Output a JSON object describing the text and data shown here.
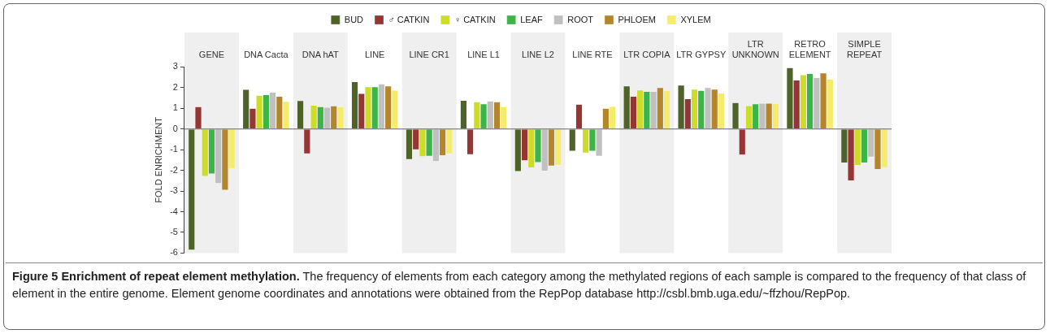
{
  "chart_data": {
    "type": "bar",
    "title": "Figure 5 Enrichment of repeat element methylation.",
    "annotations": [
      "The frequency of elements from each category among the methylated regions of each sample is compared to the frequency of that class of element in the entire genome. Element genome coordinates and annotations were obtained from the RepPop database http://csbl.bmb.uga.edu/~ffzhou/RepPop."
    ],
    "ylabel": "FOLD ENRICHMENT",
    "categories": [
      "GENE",
      "DNA Cacta",
      "DNA hAT",
      "LINE",
      "LINE CR1",
      "LINE L1",
      "LINE L2",
      "LINE RTE",
      "LTR COPIA",
      "LTR GYPSY",
      "LTR\nUNKNOWN",
      "RETRO\nELEMENT",
      "SIMPLE\nREPEAT"
    ],
    "series": [
      {
        "name": "BUD",
        "color": "#4f6228",
        "values": [
          -5.86,
          1.92,
          1.37,
          2.29,
          -1.47,
          1.38,
          -2.05,
          -1.07,
          2.08,
          2.12,
          1.28,
          2.97,
          -1.64
        ]
      },
      {
        "name": "♂ CATKIN",
        "color": "#963634",
        "values": [
          1.08,
          1.0,
          -1.2,
          1.72,
          -1.0,
          -1.24,
          -1.53,
          1.2,
          1.58,
          1.46,
          -1.26,
          2.37,
          -2.51
        ]
      },
      {
        "name": "♀ CATKIN",
        "color": "#cddc29",
        "values": [
          -2.29,
          1.63,
          1.15,
          2.04,
          -1.34,
          1.32,
          -1.88,
          -1.16,
          1.89,
          1.93,
          1.13,
          2.62,
          -1.76
        ]
      },
      {
        "name": "LEAF",
        "color": "#3cb44a",
        "values": [
          -2.17,
          1.66,
          1.08,
          2.04,
          -1.32,
          1.22,
          -1.62,
          -1.07,
          1.82,
          1.87,
          1.22,
          2.68,
          -1.64
        ]
      },
      {
        "name": "ROOT",
        "color": "#c0c0c0",
        "values": [
          -2.63,
          1.78,
          1.05,
          2.18,
          -1.57,
          1.36,
          -2.03,
          -1.32,
          1.82,
          2.0,
          1.25,
          2.49,
          -1.36
        ]
      },
      {
        "name": "PHLOEM",
        "color": "#b3862c",
        "values": [
          -2.96,
          1.58,
          1.12,
          2.08,
          -1.29,
          1.32,
          -1.79,
          1.0,
          2.0,
          1.93,
          1.25,
          2.71,
          -1.96
        ]
      },
      {
        "name": "XYLEM",
        "color": "#f5ec6c",
        "values": [
          -1.93,
          1.34,
          1.08,
          1.88,
          -1.2,
          1.07,
          -1.76,
          1.09,
          1.87,
          1.74,
          1.24,
          2.42,
          -1.87
        ]
      }
    ],
    "bands": [
      {
        "axis": "x",
        "from": "GENE",
        "to": "GENE",
        "color": "#efefef"
      },
      {
        "axis": "x",
        "from": "DNA hAT",
        "to": "DNA hAT",
        "color": "#efefef"
      },
      {
        "axis": "x",
        "from": "LINE CR1",
        "to": "LINE CR1",
        "color": "#efefef"
      },
      {
        "axis": "x",
        "from": "LINE L2",
        "to": "LINE L2",
        "color": "#efefef"
      },
      {
        "axis": "x",
        "from": "LTR COPIA",
        "to": "LTR COPIA",
        "color": "#efefef"
      },
      {
        "axis": "x",
        "from": "LTR\nUNKNOWN",
        "to": "LTR\nUNKNOWN",
        "color": "#efefef"
      },
      {
        "axis": "x",
        "from": "SIMPLE\nREPEAT",
        "to": "SIMPLE\nREPEAT",
        "color": "#efefef"
      }
    ],
    "ref_lines": [
      {
        "axis": "y",
        "value": 0,
        "color": "#666666"
      }
    ],
    "ylim": [
      -6,
      3
    ],
    "yticks": [
      -6,
      -5,
      -4,
      -3,
      -2,
      -1,
      0,
      1,
      2,
      3
    ],
    "grid": false,
    "legend": "top"
  }
}
